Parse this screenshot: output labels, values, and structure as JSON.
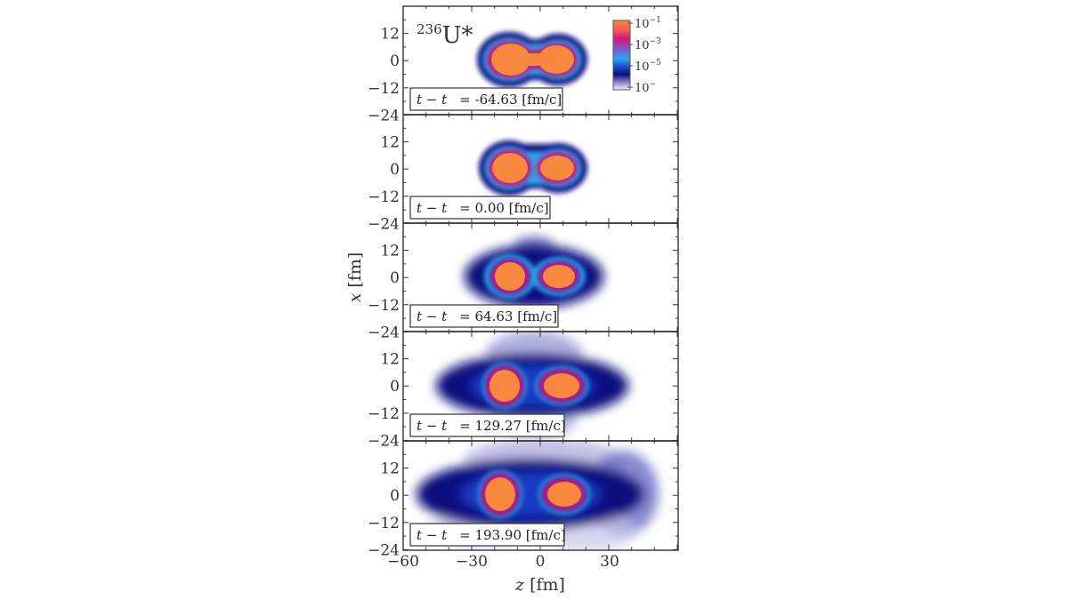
{
  "chart_data": {
    "type": "heatmap",
    "title": "",
    "nucleus_label": {
      "mass": "236",
      "symbol": "U*"
    },
    "xlabel": "z [fm]",
    "ylabel": "x [fm]",
    "xlim": [
      -60,
      60
    ],
    "ylim": [
      -24,
      24
    ],
    "xticks": [
      -60,
      -30,
      0,
      30
    ],
    "yticks": [
      12,
      0,
      -12,
      -24
    ],
    "colorbar": {
      "scale": "log",
      "tick_labels": [
        "10^-1",
        "10^-3",
        "10^-5",
        "10^-"
      ],
      "colors": [
        "#f78b3e",
        "#d6177a",
        "#2aa6ec",
        "#0b0f7e",
        "#f4f2fa"
      ]
    },
    "panels": [
      {
        "time_label": "t − t",
        "time_value": "-64.63",
        "unit": "[fm/c]",
        "description": "compound nucleus with neck, two lobes connected"
      },
      {
        "time_label": "t − t",
        "time_value": "0.00",
        "unit": "[fm/c]",
        "description": "scission point, thin neck between fragments"
      },
      {
        "time_label": "t − t",
        "time_value": "64.63",
        "unit": "[fm/c]",
        "description": "separated fragments with low-density halo"
      },
      {
        "time_label": "t − t",
        "time_value": "129.27",
        "unit": "[fm/c]",
        "description": "fragments separating, expanding cloud"
      },
      {
        "time_label": "t − t",
        "time_value": "193.90",
        "unit": "[fm/c]",
        "description": "fragments further apart, diffuse emission"
      }
    ]
  },
  "axes": {
    "xlabel_var": "z",
    "xlabel_unit": "[fm]",
    "ylabel_var": "x",
    "ylabel_unit": "[fm]",
    "xtick_labels": [
      "−60",
      "−30",
      "0",
      "30"
    ],
    "ytick_labels": [
      "12",
      "0",
      "−12",
      "−24"
    ]
  },
  "nucleus": {
    "mass": "236",
    "symbol": "U*"
  },
  "colorbar": {
    "labels": [
      "10",
      "10",
      "10",
      "10"
    ],
    "exponents": [
      "−1",
      "−3",
      "−5",
      "−"
    ]
  },
  "panels": [
    {
      "t_lhs": "t − t",
      "t_eq": "= -64.63 [fm/c]"
    },
    {
      "t_lhs": "t − t",
      "t_eq": "= 0.00 [fm/c]"
    },
    {
      "t_lhs": "t − t",
      "t_eq": "= 64.63 [fm/c]"
    },
    {
      "t_lhs": "t − t",
      "t_eq": "= 129.27 [fm/c]"
    },
    {
      "t_lhs": "t − t",
      "t_eq": "= 193.90 [fm/c]"
    }
  ]
}
